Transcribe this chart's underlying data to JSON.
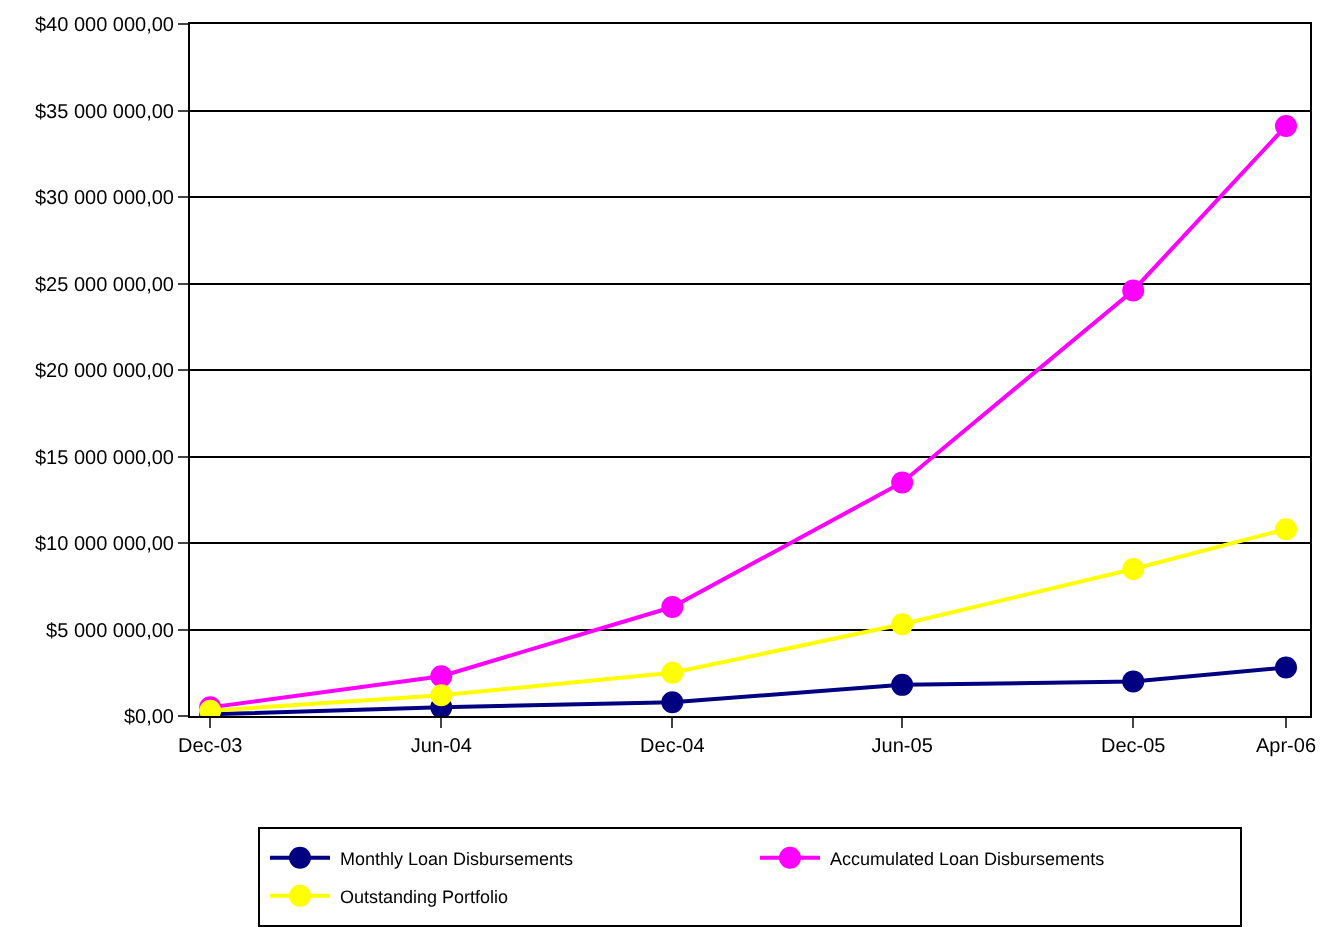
{
  "chart_data": {
    "type": "line",
    "x": [
      "2003-12",
      "2004-06",
      "2004-12",
      "2005-06",
      "2005-12",
      "2006-04"
    ],
    "xlim": [
      "2003-11-15",
      "2006-04-20"
    ],
    "xticks": [
      {
        "value": "2003-12",
        "label": "Dec-03"
      },
      {
        "value": "2004-06",
        "label": "Jun-04"
      },
      {
        "value": "2004-12",
        "label": "Dec-04"
      },
      {
        "value": "2005-06",
        "label": "Jun-05"
      },
      {
        "value": "2005-12",
        "label": "Dec-05"
      },
      {
        "value": "2006-04",
        "label": "Apr-06"
      }
    ],
    "ylim": [
      0,
      40000000
    ],
    "yticks": [
      {
        "value": 0,
        "label": "$0,00"
      },
      {
        "value": 5000000,
        "label": "$5 000 000,00"
      },
      {
        "value": 10000000,
        "label": "$10 000 000,00"
      },
      {
        "value": 15000000,
        "label": "$15 000 000,00"
      },
      {
        "value": 20000000,
        "label": "$20 000 000,00"
      },
      {
        "value": 25000000,
        "label": "$25 000 000,00"
      },
      {
        "value": 30000000,
        "label": "$30 000 000,00"
      },
      {
        "value": 35000000,
        "label": "$35 000 000,00"
      },
      {
        "value": 40000000,
        "label": "$40 000 000,00"
      }
    ],
    "series": [
      {
        "name": "Monthly Loan Disbursements",
        "color": "#000080",
        "values": [
          100000,
          500000,
          800000,
          1800000,
          2000000,
          2800000
        ]
      },
      {
        "name": "Accumulated Loan Disbursements",
        "color": "#ff00ff",
        "values": [
          500000,
          2300000,
          6300000,
          13500000,
          24600000,
          34100000
        ]
      },
      {
        "name": "Outstanding Portfolio",
        "color": "#ffff00",
        "values": [
          300000,
          1200000,
          2500000,
          5300000,
          8500000,
          10800000
        ]
      }
    ],
    "grid": "y",
    "legend": "bottom",
    "marker": "circle",
    "line_style": "solid"
  }
}
